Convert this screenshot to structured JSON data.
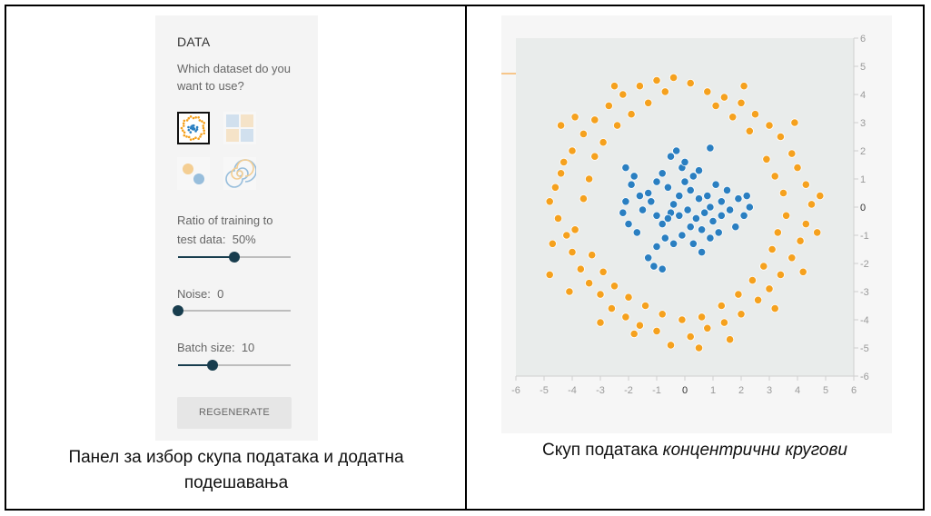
{
  "panel": {
    "title": "DATA",
    "question": "Which dataset do you want to use?",
    "datasets": [
      {
        "name": "circle",
        "selected": true
      },
      {
        "name": "exclusive-or",
        "selected": false
      },
      {
        "name": "gaussian",
        "selected": false
      },
      {
        "name": "spiral",
        "selected": false
      }
    ],
    "ratio_label": "Ratio of training to",
    "ratio_label2": "test data:",
    "ratio_value": "50%",
    "ratio_fraction": 0.5,
    "noise_label": "Noise:",
    "noise_value": "0",
    "noise_fraction": 0.0,
    "batch_label": "Batch size:",
    "batch_value": "10",
    "batch_fraction": 0.31,
    "regenerate_label": "REGENERATE"
  },
  "captions": {
    "left_line1": "Панел за избор скупа података и додатна",
    "left_line2": "подешавања",
    "right_prefix": "Скуп података ",
    "right_italic": "концентрични кругови"
  },
  "colors": {
    "inner_class": "#2a7fc1",
    "outer_class": "#f5a11e",
    "slider": "#183d4e"
  },
  "chart_data": {
    "type": "scatter",
    "xlim": [
      -6,
      6
    ],
    "ylim": [
      -6,
      6
    ],
    "x_ticks": [
      -6,
      -5,
      -4,
      -3,
      -2,
      -1,
      0,
      1,
      2,
      3,
      4,
      5,
      6
    ],
    "y_ticks": [
      6,
      5,
      4,
      3,
      2,
      1,
      0,
      -1,
      -2,
      -3,
      -4,
      -5,
      -6
    ],
    "series": [
      {
        "color": "#2a7fc1",
        "points": [
          [
            -2.1,
            1.4
          ],
          [
            -1.9,
            0.8
          ],
          [
            -1.6,
            0.4
          ],
          [
            -1.3,
            0.5
          ],
          [
            -1.0,
            0.9
          ],
          [
            -0.8,
            1.2
          ],
          [
            -0.6,
            0.7
          ],
          [
            -0.5,
            1.8
          ],
          [
            -0.3,
            2.0
          ],
          [
            -0.1,
            1.4
          ],
          [
            0.0,
            1.6
          ],
          [
            0.3,
            1.1
          ],
          [
            0.5,
            1.3
          ],
          [
            0.9,
            2.1
          ],
          [
            1.1,
            0.8
          ],
          [
            0.8,
            0.4
          ],
          [
            0.5,
            0.3
          ],
          [
            0.2,
            0.6
          ],
          [
            -0.2,
            0.4
          ],
          [
            -0.4,
            0.1
          ],
          [
            -1.2,
            0.2
          ],
          [
            -1.0,
            -0.3
          ],
          [
            -0.8,
            -0.6
          ],
          [
            -0.5,
            -0.2
          ],
          [
            -0.2,
            -0.3
          ],
          [
            0.1,
            -0.1
          ],
          [
            0.4,
            -0.4
          ],
          [
            0.7,
            -0.2
          ],
          [
            1.0,
            -0.5
          ],
          [
            1.3,
            -0.3
          ],
          [
            1.6,
            -0.1
          ],
          [
            1.9,
            0.3
          ],
          [
            2.2,
            0.4
          ],
          [
            2.3,
            0.0
          ],
          [
            2.1,
            -0.3
          ],
          [
            1.8,
            -0.7
          ],
          [
            1.5,
            0.6
          ],
          [
            1.3,
            0.2
          ],
          [
            0.9,
            0.0
          ],
          [
            0.6,
            -0.8
          ],
          [
            0.2,
            -0.7
          ],
          [
            -0.1,
            -1.0
          ],
          [
            -0.4,
            -1.3
          ],
          [
            -0.7,
            -1.1
          ],
          [
            -1.0,
            -1.4
          ],
          [
            -1.3,
            -1.8
          ],
          [
            -1.1,
            -2.1
          ],
          [
            -0.8,
            -2.2
          ],
          [
            0.3,
            -1.3
          ],
          [
            0.6,
            -1.6
          ],
          [
            0.9,
            -1.1
          ],
          [
            1.2,
            -0.9
          ],
          [
            -2.2,
            -0.2
          ],
          [
            -2.0,
            -0.6
          ],
          [
            -1.7,
            -0.9
          ],
          [
            -2.1,
            0.2
          ],
          [
            -1.8,
            1.1
          ],
          [
            -1.5,
            -0.1
          ],
          [
            -0.6,
            -0.4
          ],
          [
            0.0,
            0.9
          ]
        ]
      },
      {
        "color": "#f5a11e",
        "points": [
          [
            -4.8,
            0.2
          ],
          [
            -4.6,
            0.7
          ],
          [
            -4.4,
            1.2
          ],
          [
            -4.5,
            -0.4
          ],
          [
            -4.2,
            -1.0
          ],
          [
            -4.0,
            -1.6
          ],
          [
            -3.7,
            -2.2
          ],
          [
            -3.4,
            -2.7
          ],
          [
            -3.0,
            -3.1
          ],
          [
            -2.6,
            -3.6
          ],
          [
            -2.1,
            -3.9
          ],
          [
            -1.6,
            -4.2
          ],
          [
            -1.0,
            -4.4
          ],
          [
            -0.5,
            -4.9
          ],
          [
            0.2,
            -4.6
          ],
          [
            0.8,
            -4.3
          ],
          [
            1.4,
            -4.1
          ],
          [
            2.0,
            -3.8
          ],
          [
            2.6,
            -3.3
          ],
          [
            3.0,
            -2.9
          ],
          [
            3.4,
            -2.4
          ],
          [
            3.8,
            -1.8
          ],
          [
            4.1,
            -1.2
          ],
          [
            4.3,
            -0.6
          ],
          [
            4.5,
            0.1
          ],
          [
            4.3,
            0.8
          ],
          [
            4.0,
            1.4
          ],
          [
            3.8,
            1.9
          ],
          [
            3.4,
            2.5
          ],
          [
            3.0,
            2.9
          ],
          [
            2.5,
            3.3
          ],
          [
            2.0,
            3.7
          ],
          [
            1.4,
            3.9
          ],
          [
            0.8,
            4.1
          ],
          [
            0.2,
            4.4
          ],
          [
            -0.4,
            4.6
          ],
          [
            -1.0,
            4.5
          ],
          [
            -1.6,
            4.3
          ],
          [
            -2.2,
            4.0
          ],
          [
            -2.7,
            3.6
          ],
          [
            -3.2,
            3.1
          ],
          [
            -3.6,
            2.6
          ],
          [
            -4.0,
            2.0
          ],
          [
            -4.3,
            1.6
          ],
          [
            -4.7,
            -1.3
          ],
          [
            -3.9,
            -0.8
          ],
          [
            -3.6,
            0.3
          ],
          [
            -3.4,
            1.0
          ],
          [
            -3.2,
            1.8
          ],
          [
            -2.9,
            2.3
          ],
          [
            -2.4,
            2.9
          ],
          [
            -1.9,
            3.3
          ],
          [
            -1.3,
            3.7
          ],
          [
            -0.7,
            4.1
          ],
          [
            1.1,
            3.6
          ],
          [
            1.7,
            3.2
          ],
          [
            2.3,
            2.7
          ],
          [
            2.9,
            1.7
          ],
          [
            3.2,
            1.1
          ],
          [
            3.5,
            0.5
          ],
          [
            3.6,
            -0.3
          ],
          [
            3.3,
            -0.9
          ],
          [
            3.1,
            -1.5
          ],
          [
            2.8,
            -2.1
          ],
          [
            2.4,
            -2.6
          ],
          [
            1.9,
            -3.1
          ],
          [
            1.3,
            -3.5
          ],
          [
            0.6,
            -3.9
          ],
          [
            -0.1,
            -4.0
          ],
          [
            -0.8,
            -3.8
          ],
          [
            -1.4,
            -3.5
          ],
          [
            -2.0,
            -3.2
          ],
          [
            -2.5,
            -2.8
          ],
          [
            -2.9,
            -2.3
          ],
          [
            -3.3,
            -1.7
          ],
          [
            4.7,
            -0.9
          ],
          [
            4.8,
            0.4
          ],
          [
            3.9,
            3.0
          ],
          [
            2.1,
            4.3
          ],
          [
            -2.5,
            4.3
          ],
          [
            -3.9,
            3.2
          ],
          [
            -4.8,
            -2.4
          ],
          [
            -3.0,
            -4.1
          ],
          [
            0.5,
            -5.0
          ],
          [
            1.6,
            -4.7
          ],
          [
            3.2,
            -3.6
          ],
          [
            4.2,
            -2.3
          ],
          [
            -1.8,
            -4.5
          ],
          [
            -4.1,
            -3.0
          ],
          [
            -4.4,
            2.9
          ]
        ]
      }
    ]
  }
}
